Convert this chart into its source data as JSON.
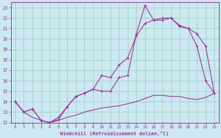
{
  "xlabel": "Windchill (Refroidissement éolien,°C)",
  "bg_color": "#cce8f0",
  "grid_color": "#99ccbb",
  "line_color": "#993399",
  "spine_color": "#993399",
  "xlim": [
    -0.5,
    23.5
  ],
  "ylim": [
    12,
    23.5
  ],
  "xticks": [
    0,
    1,
    2,
    3,
    4,
    5,
    6,
    7,
    8,
    9,
    10,
    11,
    12,
    13,
    14,
    15,
    16,
    17,
    18,
    19,
    20,
    21,
    22,
    23
  ],
  "yticks": [
    12,
    13,
    14,
    15,
    16,
    17,
    18,
    19,
    20,
    21,
    22,
    23
  ],
  "line1_x": [
    0,
    1,
    2,
    3,
    4,
    5,
    6,
    7,
    8,
    9,
    10,
    11,
    12,
    13,
    14,
    15,
    16,
    17,
    18,
    19,
    20,
    21,
    22,
    23
  ],
  "line1_y": [
    14.0,
    13.0,
    13.3,
    12.2,
    12.0,
    12.3,
    13.5,
    14.5,
    14.8,
    15.2,
    15.0,
    15.0,
    16.3,
    16.5,
    20.5,
    23.2,
    21.8,
    22.0,
    22.0,
    21.3,
    21.0,
    19.3,
    16.0,
    14.8
  ],
  "line2_x": [
    0,
    1,
    2,
    3,
    4,
    5,
    6,
    7,
    8,
    9,
    10,
    11,
    12,
    13,
    14,
    15,
    16,
    17,
    18,
    19,
    20,
    21,
    22,
    23
  ],
  "line2_y": [
    14.0,
    13.0,
    13.3,
    12.2,
    12.0,
    12.5,
    13.5,
    14.5,
    14.8,
    15.2,
    16.5,
    16.3,
    17.5,
    18.2,
    20.3,
    21.5,
    21.8,
    21.8,
    22.0,
    21.2,
    21.0,
    20.5,
    19.3,
    14.8
  ],
  "line3_x": [
    0,
    1,
    2,
    3,
    4,
    5,
    6,
    7,
    8,
    9,
    10,
    11,
    12,
    13,
    14,
    15,
    16,
    17,
    18,
    19,
    20,
    21,
    22,
    23
  ],
  "line3_y": [
    14.0,
    13.0,
    12.5,
    12.2,
    12.0,
    12.2,
    12.5,
    12.7,
    13.0,
    13.2,
    13.4,
    13.5,
    13.6,
    13.8,
    14.0,
    14.3,
    14.6,
    14.6,
    14.5,
    14.5,
    14.3,
    14.2,
    14.4,
    14.8
  ]
}
